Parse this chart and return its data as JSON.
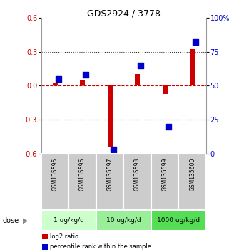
{
  "title": "GDS2924 / 3778",
  "samples": [
    "GSM135595",
    "GSM135596",
    "GSM135597",
    "GSM135598",
    "GSM135599",
    "GSM135600"
  ],
  "log2_ratio": [
    0.03,
    0.05,
    -0.54,
    0.1,
    -0.07,
    0.32
  ],
  "percentile_rank": [
    55,
    58,
    3,
    65,
    20,
    82
  ],
  "ylim_left": [
    -0.6,
    0.6
  ],
  "ylim_right": [
    0,
    100
  ],
  "yticks_left": [
    -0.6,
    -0.3,
    0.0,
    0.3,
    0.6
  ],
  "yticks_right": [
    0,
    25,
    50,
    75,
    100
  ],
  "dose_groups": [
    {
      "label": "1 ug/kg/d",
      "samples": [
        0,
        1
      ],
      "color": "#ccffcc"
    },
    {
      "label": "10 ug/kg/d",
      "samples": [
        2,
        3
      ],
      "color": "#99ee99"
    },
    {
      "label": "1000 ug/kg/d",
      "samples": [
        4,
        5
      ],
      "color": "#55dd55"
    }
  ],
  "bar_color_red": "#cc0000",
  "bar_color_blue": "#0000cc",
  "bar_width": 0.18,
  "dot_size": 28,
  "zero_line_color": "#cc0000",
  "sample_box_color": "#cccccc",
  "dose_label": "dose",
  "legend_red": "log2 ratio",
  "legend_blue": "percentile rank within the sample",
  "hline_positions": [
    0.3,
    -0.3
  ],
  "dotted_line_color": "#333333",
  "title_fontsize": 9
}
